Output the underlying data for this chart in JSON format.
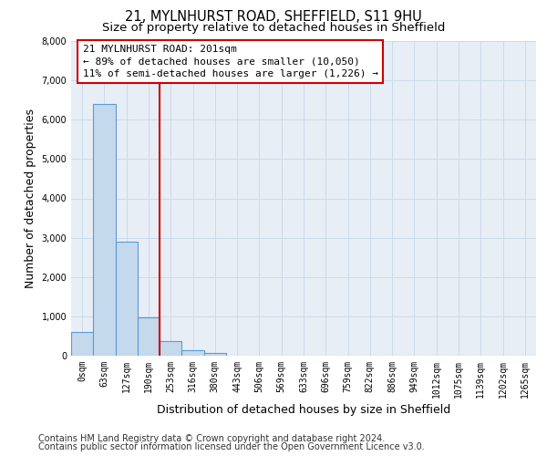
{
  "title_line1": "21, MYLNHURST ROAD, SHEFFIELD, S11 9HU",
  "title_line2": "Size of property relative to detached houses in Sheffield",
  "xlabel": "Distribution of detached houses by size in Sheffield",
  "ylabel": "Number of detached properties",
  "bar_labels": [
    "0sqm",
    "63sqm",
    "127sqm",
    "190sqm",
    "253sqm",
    "316sqm",
    "380sqm",
    "443sqm",
    "506sqm",
    "569sqm",
    "633sqm",
    "696sqm",
    "759sqm",
    "822sqm",
    "886sqm",
    "949sqm",
    "1012sqm",
    "1075sqm",
    "1139sqm",
    "1202sqm",
    "1265sqm"
  ],
  "bar_values": [
    600,
    6400,
    2900,
    975,
    360,
    145,
    75,
    0,
    0,
    0,
    0,
    0,
    0,
    0,
    0,
    0,
    0,
    0,
    0,
    0,
    0
  ],
  "bar_color": "#c5d9ed",
  "bar_edge_color": "#5b9bd5",
  "vline_x": 3.5,
  "vline_color": "#cc0000",
  "annotation_text": "21 MYLNHURST ROAD: 201sqm\n← 89% of detached houses are smaller (10,050)\n11% of semi-detached houses are larger (1,226) →",
  "annotation_box_facecolor": "#ffffff",
  "annotation_box_edgecolor": "#cc0000",
  "ylim": [
    0,
    8000
  ],
  "yticks": [
    0,
    1000,
    2000,
    3000,
    4000,
    5000,
    6000,
    7000,
    8000
  ],
  "grid_color": "#ccdaeb",
  "bg_color": "#e8eef5",
  "footer_line1": "Contains HM Land Registry data © Crown copyright and database right 2024.",
  "footer_line2": "Contains public sector information licensed under the Open Government Licence v3.0.",
  "title_fontsize": 10.5,
  "subtitle_fontsize": 9.5,
  "axis_label_fontsize": 9,
  "tick_fontsize": 7,
  "ann_fontsize": 8,
  "footer_fontsize": 7
}
